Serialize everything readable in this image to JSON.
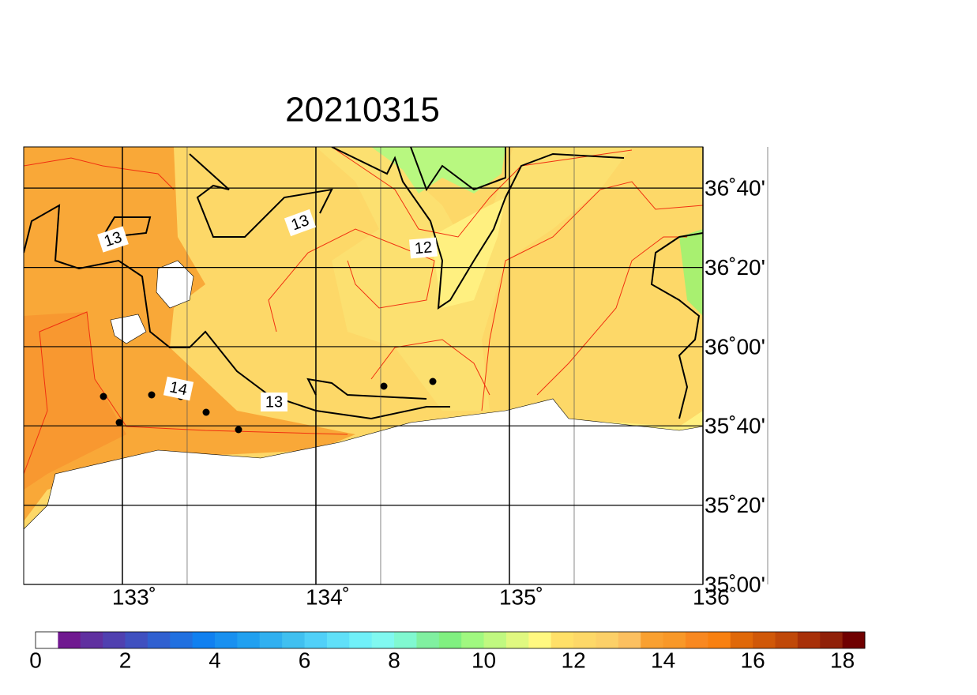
{
  "title": "20210315",
  "map": {
    "lonlim": [
      132.49,
      136
    ],
    "latlim": [
      35,
      36.84
    ],
    "lon_ticks": [
      {
        "value": 133,
        "label": "133˚"
      },
      {
        "value": 134,
        "label": "134˚"
      },
      {
        "value": 135,
        "label": "135˚"
      },
      {
        "value": 136,
        "label": "136˚"
      }
    ],
    "lat_ticks": [
      {
        "value": 35,
        "label": "35˚00'"
      },
      {
        "value": 35.333,
        "label": "35˚20'"
      },
      {
        "value": 35.667,
        "label": "35˚40'"
      },
      {
        "value": 36,
        "label": "36˚00'"
      },
      {
        "value": 36.333,
        "label": "36˚20'"
      },
      {
        "value": 36.667,
        "label": "36˚40'"
      }
    ],
    "contour_labels": [
      "13",
      "13",
      "12",
      "14",
      "13"
    ]
  },
  "colorbar": {
    "lim": [
      0,
      18.5
    ],
    "ticks": [
      0,
      2,
      4,
      6,
      8,
      10,
      12,
      14,
      16,
      18
    ],
    "colors": [
      "#ffffff",
      "#701890",
      "#6030a0",
      "#5040b0",
      "#4050c0",
      "#3060d0",
      "#2070e0",
      "#1080f0",
      "#1890f0",
      "#20a0f0",
      "#30b0f0",
      "#40c0f0",
      "#50d0f8",
      "#60e0f8",
      "#70f0f8",
      "#80f8f0",
      "#80f8d0",
      "#80f0a0",
      "#80f080",
      "#a0f880",
      "#c0f880",
      "#e0f880",
      "#fff880",
      "#ffe068",
      "#fdd868",
      "#fcd068",
      "#fcc060",
      "#f9a030",
      "#f89828",
      "#f88820",
      "#f88010",
      "#e06808",
      "#d05808",
      "#c04808",
      "#a83008",
      "#902008",
      "#700000"
    ]
  }
}
